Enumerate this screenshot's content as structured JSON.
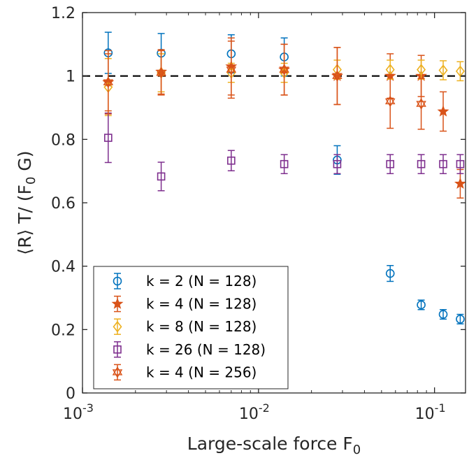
{
  "chart_data": {
    "type": "scatter",
    "xscale": "log",
    "xlim": [
      0.001,
      0.15
    ],
    "ylim": [
      0,
      1.2
    ],
    "xlabel": "Large-scale force F",
    "xlabel_sub": "0",
    "ylabel": "⟨R⟩ T/ (F",
    "ylabel_sub": "0",
    "ylabel_tail": " G)",
    "x_ticks": [
      {
        "value": 0.001,
        "base": "10",
        "exp": "-3"
      },
      {
        "value": 0.01,
        "base": "10",
        "exp": "-2"
      },
      {
        "value": 0.1,
        "base": "10",
        "exp": "-1"
      }
    ],
    "y_ticks": [
      {
        "value": 0,
        "label": "0"
      },
      {
        "value": 0.2,
        "label": "0.2"
      },
      {
        "value": 0.4,
        "label": "0.4"
      },
      {
        "value": 0.6,
        "label": "0.6"
      },
      {
        "value": 0.8,
        "label": "0.8"
      },
      {
        "value": 1.0,
        "label": "1"
      },
      {
        "value": 1.2,
        "label": "1.2"
      }
    ],
    "reference_line": {
      "y": 1,
      "style": "dashed",
      "color": "#000000"
    },
    "grid": false,
    "legend_position": "lower-left",
    "series": [
      {
        "name": "k = 2 (N = 128)",
        "marker": "circle",
        "color": "#0072bd",
        "points": [
          {
            "x": 0.0014,
            "y": 1.073,
            "err": 0.065
          },
          {
            "x": 0.0028,
            "y": 1.072,
            "err": 0.062
          },
          {
            "x": 0.007,
            "y": 1.07,
            "err": 0.06
          },
          {
            "x": 0.014,
            "y": 1.06,
            "err": 0.06
          },
          {
            "x": 0.028,
            "y": 0.735,
            "err": 0.045
          },
          {
            "x": 0.056,
            "y": 0.377,
            "err": 0.025
          },
          {
            "x": 0.084,
            "y": 0.278,
            "err": 0.015
          },
          {
            "x": 0.112,
            "y": 0.248,
            "err": 0.015
          },
          {
            "x": 0.14,
            "y": 0.233,
            "err": 0.015
          }
        ]
      },
      {
        "name": "k = 4 (N = 128)",
        "marker": "star",
        "color": "#d95319",
        "points": [
          {
            "x": 0.0014,
            "y": 0.98,
            "err": 0.09
          },
          {
            "x": 0.0028,
            "y": 1.013,
            "err": 0.07
          },
          {
            "x": 0.007,
            "y": 1.03,
            "err": 0.09
          },
          {
            "x": 0.014,
            "y": 1.02,
            "err": 0.08
          },
          {
            "x": 0.028,
            "y": 1.0,
            "err": 0.09
          },
          {
            "x": 0.056,
            "y": 1.0,
            "err": 0.07
          },
          {
            "x": 0.084,
            "y": 1.0,
            "err": 0.065
          },
          {
            "x": 0.112,
            "y": 0.888,
            "err": 0.062
          },
          {
            "x": 0.14,
            "y": 0.66,
            "err": 0.045
          }
        ]
      },
      {
        "name": "k = 8 (N = 128)",
        "marker": "diamond",
        "color": "#edb120",
        "points": [
          {
            "x": 0.0014,
            "y": 0.965,
            "err": 0.09
          },
          {
            "x": 0.0028,
            "y": 1.01,
            "err": 0.06
          },
          {
            "x": 0.007,
            "y": 1.01,
            "err": 0.03
          },
          {
            "x": 0.014,
            "y": 1.01,
            "err": 0.03
          },
          {
            "x": 0.028,
            "y": 1.02,
            "err": 0.03
          },
          {
            "x": 0.056,
            "y": 1.02,
            "err": 0.03
          },
          {
            "x": 0.084,
            "y": 1.02,
            "err": 0.03
          },
          {
            "x": 0.112,
            "y": 1.018,
            "err": 0.03
          },
          {
            "x": 0.14,
            "y": 1.015,
            "err": 0.03
          }
        ]
      },
      {
        "name": "k = 26 (N = 128)",
        "marker": "square",
        "color": "#7e2f8e",
        "points": [
          {
            "x": 0.0014,
            "y": 0.805,
            "err": 0.078
          },
          {
            "x": 0.0028,
            "y": 0.683,
            "err": 0.045
          },
          {
            "x": 0.007,
            "y": 0.733,
            "err": 0.032
          },
          {
            "x": 0.014,
            "y": 0.722,
            "err": 0.03
          },
          {
            "x": 0.028,
            "y": 0.722,
            "err": 0.03
          },
          {
            "x": 0.056,
            "y": 0.722,
            "err": 0.03
          },
          {
            "x": 0.084,
            "y": 0.722,
            "err": 0.03
          },
          {
            "x": 0.112,
            "y": 0.722,
            "err": 0.03
          },
          {
            "x": 0.14,
            "y": 0.722,
            "err": 0.03
          }
        ]
      },
      {
        "name": "k = 4 (N = 256)",
        "marker": "hexagram",
        "color": "#d95319",
        "points": [
          {
            "x": 0.0014,
            "y": 0.98,
            "err": 0.1
          },
          {
            "x": 0.0028,
            "y": 1.01,
            "err": 0.07
          },
          {
            "x": 0.007,
            "y": 1.02,
            "err": 0.09
          },
          {
            "x": 0.014,
            "y": 1.02,
            "err": 0.08
          },
          {
            "x": 0.028,
            "y": 1.0,
            "err": 0.09
          },
          {
            "x": 0.056,
            "y": 0.92,
            "err": 0.085
          },
          {
            "x": 0.084,
            "y": 0.912,
            "err": 0.08
          }
        ]
      }
    ]
  }
}
